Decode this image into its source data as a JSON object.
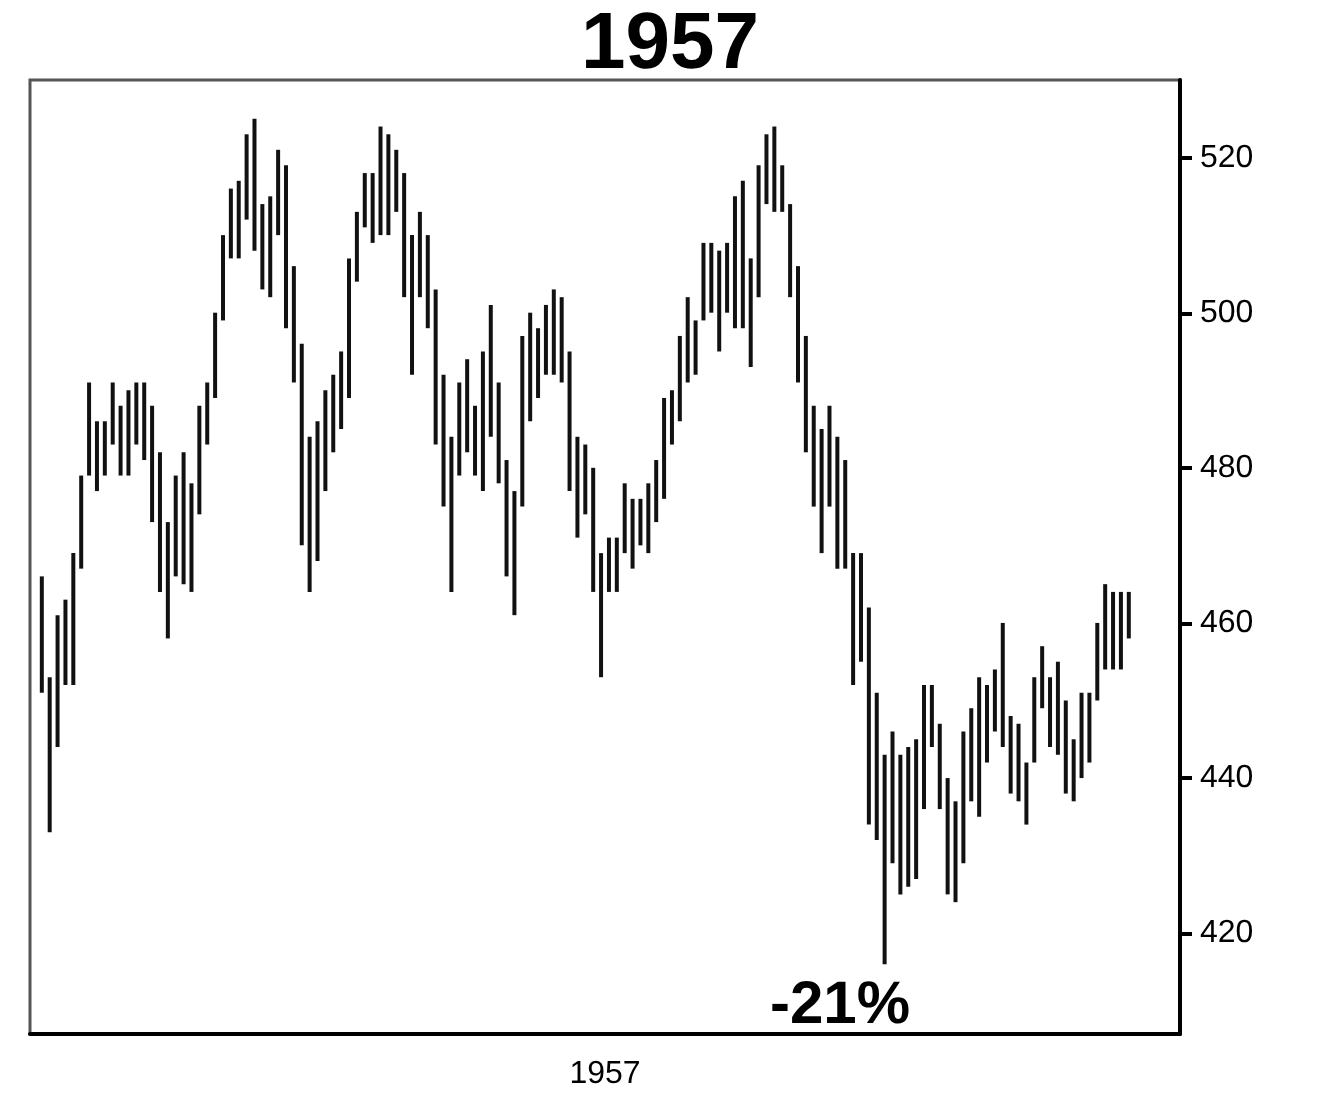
{
  "chart_data": {
    "type": "bar",
    "title": "1957",
    "xlabel": "1957",
    "annotations": [
      "-21%"
    ],
    "categories": [
      null,
      null,
      null,
      null,
      null,
      null,
      null,
      null,
      null,
      null,
      null,
      null,
      null,
      null,
      null,
      null,
      null,
      null,
      null,
      null,
      null,
      null,
      null,
      null,
      null,
      null,
      null,
      null,
      null,
      null,
      null,
      null,
      null,
      null,
      null,
      null,
      null,
      null,
      null,
      null,
      null,
      null,
      null,
      null,
      null,
      null,
      null,
      null,
      null,
      null,
      null,
      null,
      null,
      null,
      null,
      null,
      null,
      null,
      null,
      null,
      null,
      null,
      null,
      null,
      null,
      null,
      null,
      null,
      null,
      null,
      null,
      null,
      null,
      null,
      null,
      null,
      null,
      null,
      null,
      null,
      null,
      null,
      null,
      null,
      null,
      null,
      null,
      null,
      null,
      null,
      null,
      null,
      null,
      null,
      null,
      null,
      null,
      null,
      null,
      null,
      null,
      null,
      null,
      null,
      null,
      null,
      null,
      null,
      null,
      null,
      null,
      null,
      null,
      null,
      null,
      null,
      null,
      null,
      null,
      null,
      null,
      null,
      null,
      null,
      null,
      null,
      null,
      null,
      null,
      null,
      null,
      null,
      null,
      null,
      null,
      null,
      null,
      null,
      null,
      null,
      null,
      null,
      null,
      null,
      null,
      null
    ],
    "base": [
      null,
      451,
      433,
      444,
      452,
      452,
      467,
      479,
      477,
      479,
      483,
      479,
      479,
      483,
      481,
      473,
      464,
      458,
      466,
      465,
      464,
      474,
      483,
      489,
      499,
      507,
      507,
      512,
      508,
      503,
      502,
      510,
      498,
      491,
      470,
      464,
      468,
      477,
      482,
      485,
      489,
      504,
      511,
      509,
      510,
      510,
      513,
      502,
      492,
      502,
      498,
      483,
      475,
      464,
      479,
      482,
      479,
      477,
      484,
      478,
      466,
      461,
      475,
      486,
      489,
      492,
      492,
      491,
      477,
      471,
      474,
      464,
      453,
      464,
      464,
      469,
      467,
      470,
      469,
      473,
      476,
      483,
      486,
      491,
      492,
      499,
      500,
      495,
      500,
      498,
      498,
      493,
      502,
      514,
      513,
      513,
      502,
      491,
      482,
      475,
      469,
      475,
      467,
      467,
      452,
      455,
      434,
      432,
      416,
      429,
      425,
      426,
      427,
      436,
      444,
      436,
      425,
      424,
      429,
      437,
      435,
      442,
      446,
      444,
      438,
      437,
      434,
      442,
      449,
      444,
      443,
      438,
      437,
      440,
      442,
      450,
      454,
      454,
      454,
      458,
      null,
      null,
      null,
      null,
      null,
      null
    ],
    "values": [
      null,
      15,
      20,
      17,
      11,
      17,
      12,
      12,
      9,
      7,
      8,
      9,
      11,
      8,
      10,
      15,
      18,
      15,
      13,
      17,
      14,
      14,
      8,
      11,
      11,
      9,
      10,
      11,
      17,
      11,
      13,
      11,
      21,
      15,
      26,
      20,
      18,
      13,
      10,
      10,
      18,
      9,
      7,
      9,
      14,
      13,
      8,
      16,
      18,
      11,
      12,
      20,
      17,
      20,
      12,
      12,
      9,
      18,
      17,
      13,
      15,
      16,
      22,
      14,
      9,
      9,
      11,
      11,
      18,
      13,
      9,
      16,
      16,
      7,
      7,
      9,
      9,
      6,
      9,
      8,
      13,
      7,
      11,
      11,
      7,
      10,
      9,
      13,
      9,
      17,
      19,
      14,
      17,
      9,
      11,
      6,
      12,
      15,
      15,
      13,
      16,
      13,
      17,
      14,
      17,
      14,
      28,
      19,
      27,
      17,
      18,
      18,
      18,
      16,
      8,
      11,
      15,
      13,
      17,
      12,
      18,
      10,
      8,
      16,
      10,
      10,
      8,
      11,
      8,
      9,
      12,
      12,
      8,
      11,
      9,
      10,
      11,
      10,
      10,
      6,
      null,
      null,
      null,
      null,
      null,
      null
    ],
    "color": "#111111",
    "ylim": [
      407,
      530
    ],
    "yticks": [
      420,
      440,
      460,
      480,
      500,
      520
    ],
    "tick_labels": "y"
  }
}
